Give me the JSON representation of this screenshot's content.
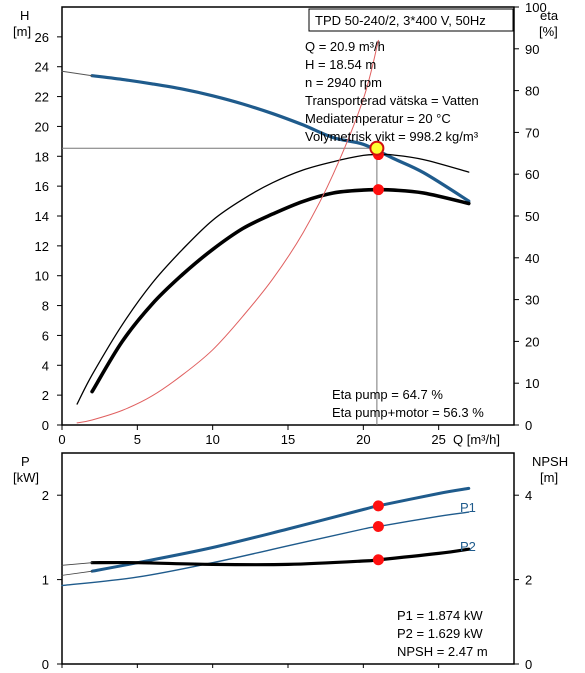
{
  "chart_data": [
    {
      "type": "line",
      "title": "TPD 50-240/2, 3*400 V, 50Hz",
      "xlabel": "Q [m³/h]",
      "ylabel_left": [
        "H",
        "[m]"
      ],
      "ylabel_right": [
        "eta",
        "[%]"
      ],
      "xlim": [
        0,
        30
      ],
      "ylim_left": [
        0,
        28
      ],
      "ylim_right": [
        0,
        100
      ],
      "x_ticks": [
        0,
        5,
        10,
        15,
        20,
        25
      ],
      "y_ticks_left": [
        0,
        2,
        4,
        6,
        8,
        10,
        12,
        14,
        16,
        18,
        20,
        22,
        24,
        26
      ],
      "y_ticks_right": [
        0,
        10,
        20,
        30,
        40,
        50,
        60,
        70,
        80,
        90,
        100
      ],
      "series": [
        {
          "axis": "left",
          "color": "#1f5b8c",
          "width": 3.2,
          "x": [
            2,
            4,
            6,
            8,
            10,
            12,
            14,
            16,
            18,
            20,
            22,
            24,
            27
          ],
          "y": [
            23.4,
            23.15,
            22.85,
            22.5,
            22.05,
            21.5,
            20.85,
            20.1,
            19.25,
            18.8,
            17.85,
            16.9,
            15.0
          ]
        },
        {
          "axis": "left",
          "color": "#555555",
          "width": 1,
          "x": [
            0,
            2
          ],
          "y": [
            23.7,
            23.4
          ]
        },
        {
          "axis": "right",
          "color": "#000000",
          "width": 1.3,
          "x": [
            1,
            2,
            4,
            6,
            8,
            10,
            12,
            14,
            16,
            18,
            20,
            21,
            22,
            24,
            27
          ],
          "y": [
            5,
            12,
            24,
            34,
            42,
            49,
            54,
            58,
            61,
            63,
            64.5,
            64.7,
            64.6,
            63.5,
            60.5
          ]
        },
        {
          "axis": "right",
          "color": "#000000",
          "width": 3.6,
          "x": [
            2,
            4,
            6,
            8,
            10,
            12,
            14,
            16,
            18,
            20,
            21,
            22,
            24,
            27
          ],
          "y": [
            8,
            20,
            29,
            36,
            42,
            47,
            50.5,
            53.5,
            55.5,
            56.2,
            56.3,
            56.2,
            55.5,
            53
          ]
        },
        {
          "axis": "right",
          "color": "#e06060",
          "width": 1,
          "x": [
            1,
            2,
            4,
            6,
            8,
            10,
            12,
            14,
            16,
            18,
            20,
            21
          ],
          "y": [
            0.5,
            1.2,
            3.5,
            7,
            12,
            18,
            26,
            35,
            46,
            60,
            78,
            92
          ]
        }
      ],
      "operating_point": {
        "x": 20.9,
        "y": 18.54
      },
      "markers_right": [
        {
          "x": 21,
          "y": 64.7
        },
        {
          "x": 21,
          "y": 56.3
        }
      ],
      "info_lines": [
        "Q = 20.9 m³/h",
        "H = 18.54 m",
        "n = 2940 rpm",
        "Transporterad vätska = Vatten",
        "Mediatemperatur = 20 °C",
        "Volymetrisk vikt = 998.2 kg/m³"
      ],
      "eta_lines": [
        "Eta pump = 64.7 %",
        "Eta pump+motor = 56.3 %"
      ]
    },
    {
      "type": "line",
      "ylabel_left": [
        "P",
        "[kW]"
      ],
      "ylabel_right": [
        "NPSH",
        "[m]"
      ],
      "xlim": [
        0,
        30
      ],
      "ylim_left": [
        0,
        2.5
      ],
      "ylim_right": [
        0,
        5
      ],
      "y_ticks_left": [
        0,
        1,
        2
      ],
      "y_ticks_right": [
        0,
        2,
        4
      ],
      "series": [
        {
          "name": "P1",
          "axis": "left",
          "color": "#1f5b8c",
          "width": 3,
          "x": [
            2,
            5,
            10,
            15,
            20,
            21,
            25,
            27
          ],
          "y": [
            1.1,
            1.2,
            1.38,
            1.6,
            1.83,
            1.874,
            2.02,
            2.08
          ]
        },
        {
          "name": "P2",
          "axis": "left",
          "color": "#1f5b8c",
          "width": 1.4,
          "x": [
            0,
            5,
            10,
            15,
            20,
            21,
            25,
            27
          ],
          "y": [
            0.93,
            1.03,
            1.2,
            1.4,
            1.6,
            1.629,
            1.75,
            1.8
          ]
        },
        {
          "axis": "right",
          "color": "#000000",
          "width": 3.2,
          "x": [
            2,
            5,
            10,
            15,
            20,
            21,
            25,
            27
          ],
          "y": [
            2.4,
            2.4,
            2.36,
            2.36,
            2.44,
            2.47,
            2.62,
            2.72
          ]
        },
        {
          "axis": "left",
          "color": "#444444",
          "width": 0.8,
          "x": [
            0,
            2
          ],
          "y": [
            1.17,
            1.2
          ]
        },
        {
          "axis": "left",
          "color": "#444444",
          "width": 0.8,
          "x": [
            0,
            2
          ],
          "y": [
            1.05,
            1.1
          ]
        }
      ],
      "markers_left": [
        {
          "x": 21,
          "y": 1.874
        },
        {
          "x": 21,
          "y": 1.629
        }
      ],
      "markers_right": [
        {
          "x": 21,
          "y": 2.47
        }
      ],
      "info_lines": [
        "P1 = 1.874 kW",
        "P2 = 1.629 kW",
        "NPSH = 2.47 m"
      ]
    }
  ]
}
